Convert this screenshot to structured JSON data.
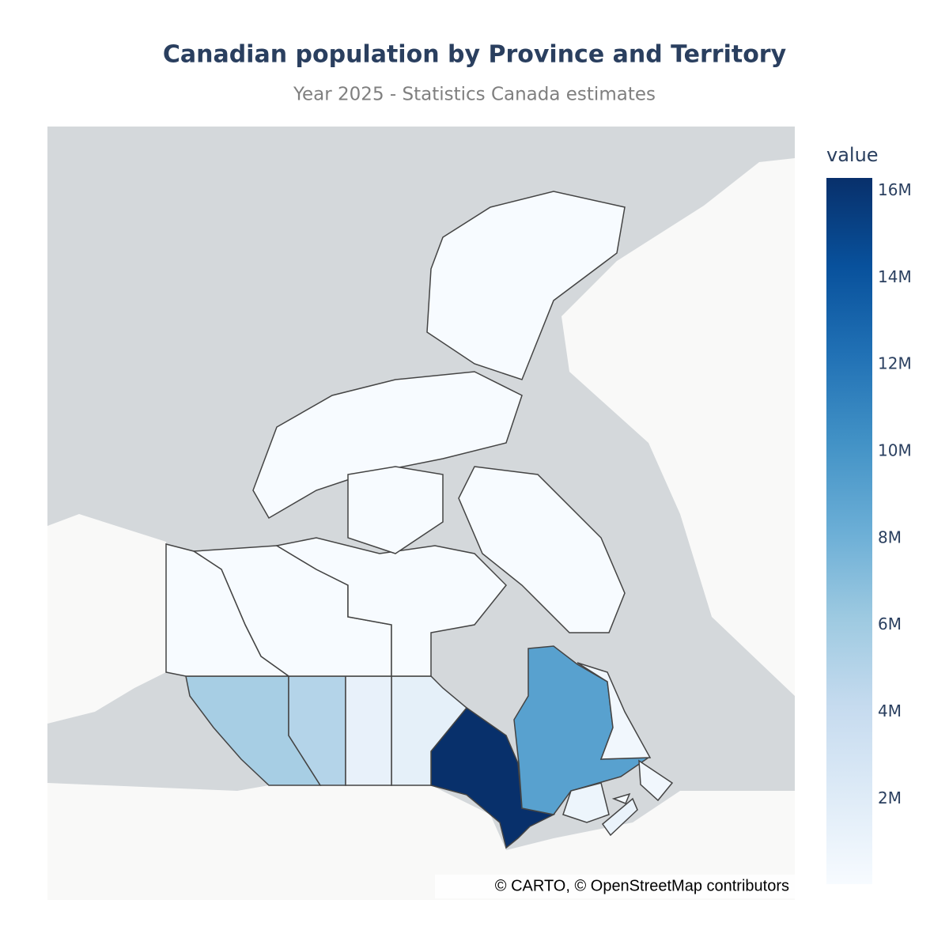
{
  "chart_data": {
    "type": "choropleth",
    "title": "Canadian population by Province and Territory",
    "subtitle": "Year 2025 - Statistics Canada estimates",
    "colorbar_title": "value",
    "attribution": "© CARTO, © OpenStreetMap contributors",
    "values": [
      16300000,
      9100000,
      5700000,
      5000000,
      1500000,
      1250000,
      1100000,
      860000,
      545000,
      180000,
      45000,
      47000,
      41000
    ],
    "zlim": [
      41000,
      16300000
    ],
    "zticks": [
      {
        "value": 2000000,
        "label": "2M"
      },
      {
        "value": 4000000,
        "label": "4M"
      },
      {
        "value": 6000000,
        "label": "6M"
      },
      {
        "value": 8000000,
        "label": "8M"
      },
      {
        "value": 10000000,
        "label": "10M"
      },
      {
        "value": 12000000,
        "label": "12M"
      },
      {
        "value": 14000000,
        "label": "14M"
      },
      {
        "value": 16000000,
        "label": "16M"
      }
    ],
    "colorscale": [
      "#f7fbff",
      "#deebf7",
      "#c6dbef",
      "#9ecae1",
      "#6baed6",
      "#4292c6",
      "#2171b5",
      "#08519c",
      "#08306b"
    ]
  }
}
